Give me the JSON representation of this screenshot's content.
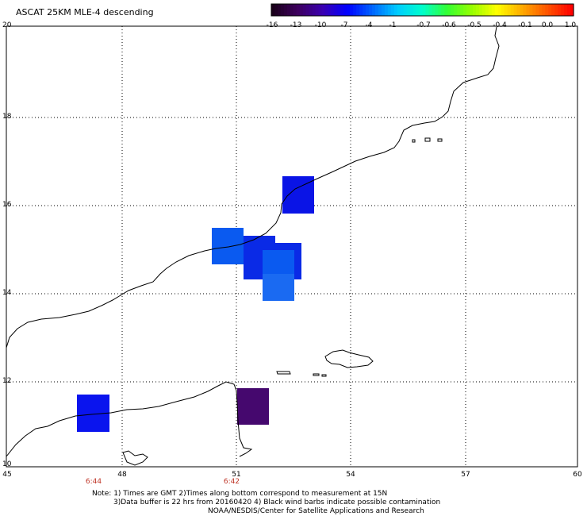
{
  "title": "ASCAT 25KM MLE-4 descending",
  "colorbar": {
    "labels": [
      "-16",
      "-13",
      "-10",
      "-7",
      "-4",
      "-1",
      "-0.7",
      "-0.6",
      "-0.5",
      "-0.4",
      "-0.1",
      "0.0",
      "1.0"
    ],
    "colors": [
      "#1a001a",
      "#3d005e",
      "#3a00b0",
      "#0000ff",
      "#0066ff",
      "#00ccff",
      "#00ffcc",
      "#33ff33",
      "#99ff00",
      "#ffff00",
      "#ffaa00",
      "#ff5500",
      "#ff0000"
    ]
  },
  "axes": {
    "x_ticks": [
      "45",
      "48",
      "51",
      "54",
      "57",
      "60"
    ],
    "y_ticks": [
      "20",
      "18",
      "16",
      "14",
      "12",
      "10"
    ]
  },
  "time_labels": [
    "6:44",
    "6:42"
  ],
  "notes": {
    "line1": "Note: 1) Times are GMT 2)Times along bottom correspond to measurement at 15N",
    "line2": "3)Data buffer is 22 hrs from 20160420 4) Black wind barbs indicate possible contamination",
    "line3": "NOAA/NESDIS/Center for Satellite Applications and Research"
  }
}
